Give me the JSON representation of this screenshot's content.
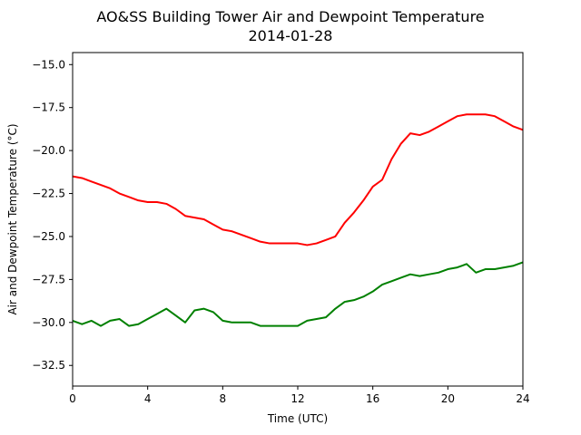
{
  "chart_data": {
    "type": "line",
    "title": "AO&SS Building Tower Air and Dewpoint Temperature",
    "subtitle": "2014-01-28",
    "xlabel": "Time (UTC)",
    "ylabel": "Air and Dewpoint Temperature (°C)",
    "xlim": [
      0,
      24
    ],
    "ylim": [
      -33.7,
      -14.3
    ],
    "x_ticks": [
      0,
      4,
      8,
      12,
      16,
      20,
      24
    ],
    "y_ticks": [
      -32.5,
      -30.0,
      -27.5,
      -25.0,
      -22.5,
      -20.0,
      -17.5,
      -15.0
    ],
    "grid": false,
    "legend": "none",
    "x": [
      0,
      0.5,
      1,
      1.5,
      2,
      2.5,
      3,
      3.5,
      4,
      4.5,
      5,
      5.5,
      6,
      6.5,
      7,
      7.5,
      8,
      8.5,
      9,
      9.5,
      10,
      10.5,
      11,
      11.5,
      12,
      12.5,
      13,
      13.5,
      14,
      14.5,
      15,
      15.5,
      16,
      16.5,
      17,
      17.5,
      18,
      18.5,
      19,
      19.5,
      20,
      20.5,
      21,
      21.5,
      22,
      22.5,
      23,
      23.5,
      24
    ],
    "series": [
      {
        "color": "#ff0000",
        "values": [
          -21.5,
          -21.6,
          -21.8,
          -22.0,
          -22.2,
          -22.5,
          -22.7,
          -22.9,
          -23.0,
          -23.0,
          -23.1,
          -23.4,
          -23.8,
          -23.9,
          -24.0,
          -24.3,
          -24.6,
          -24.7,
          -24.9,
          -25.1,
          -25.3,
          -25.4,
          -25.4,
          -25.4,
          -25.4,
          -25.5,
          -25.4,
          -25.2,
          -25.0,
          -24.2,
          -23.6,
          -22.9,
          -22.1,
          -21.7,
          -20.5,
          -19.6,
          -19.0,
          -19.1,
          -18.9,
          -18.6,
          -18.3,
          -18.0,
          -17.9,
          -17.9,
          -17.9,
          -18.0,
          -18.3,
          -18.6,
          -18.8
        ]
      },
      {
        "color": "#008000",
        "values": [
          -29.9,
          -30.1,
          -29.9,
          -30.2,
          -29.9,
          -29.8,
          -30.2,
          -30.1,
          -29.8,
          -29.5,
          -29.2,
          -29.6,
          -30.0,
          -29.3,
          -29.2,
          -29.4,
          -29.9,
          -30.0,
          -30.0,
          -30.0,
          -30.2,
          -30.2,
          -30.2,
          -30.2,
          -30.2,
          -29.9,
          -29.8,
          -29.7,
          -29.2,
          -28.8,
          -28.7,
          -28.5,
          -28.2,
          -27.8,
          -27.6,
          -27.4,
          -27.2,
          -27.3,
          -27.2,
          -27.1,
          -26.9,
          -26.8,
          -26.6,
          -27.1,
          -26.9,
          -26.9,
          -26.8,
          -26.7,
          -26.5
        ]
      }
    ]
  }
}
